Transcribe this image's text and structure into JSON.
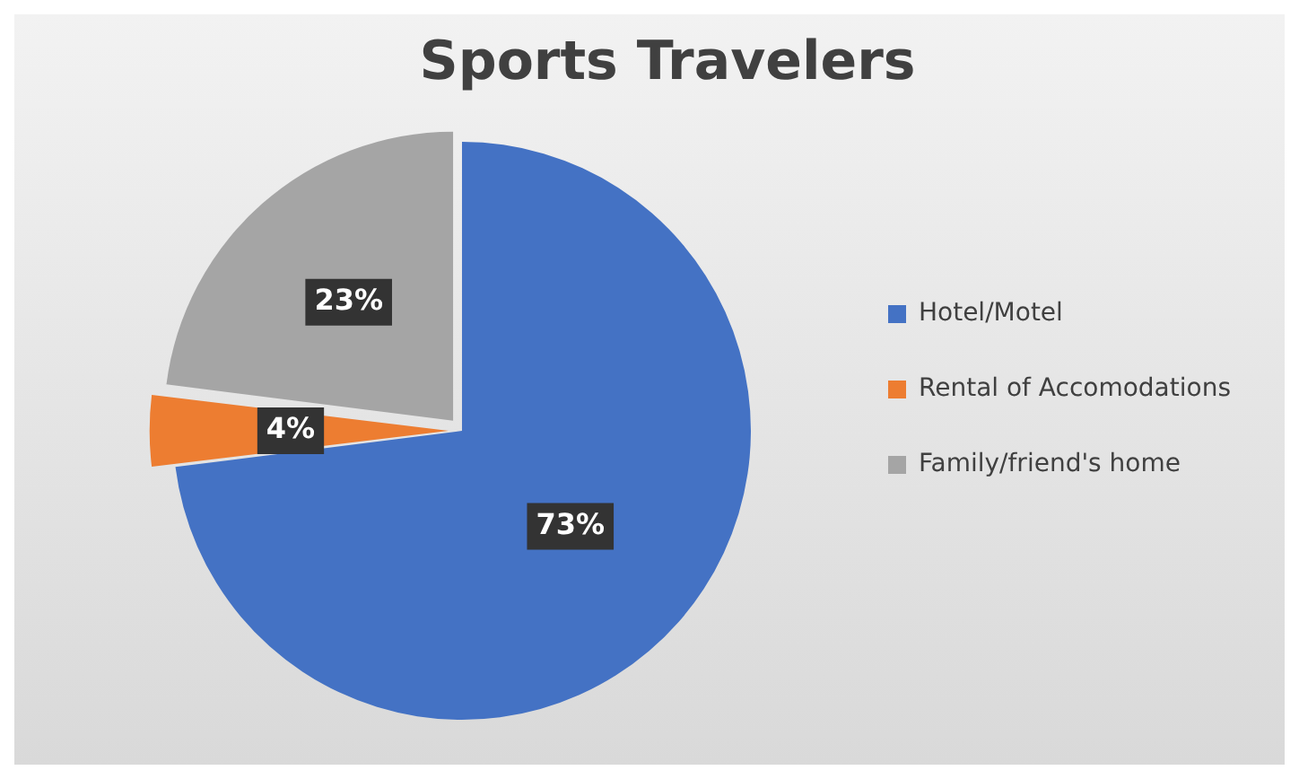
{
  "chart_data": {
    "type": "pie",
    "title": "Sports Travelers",
    "categories": [
      "Hotel/Motel",
      "Rental of Accomodations",
      "Family/friend's home"
    ],
    "values": [
      73,
      4,
      23
    ],
    "colors": [
      "#4472c4",
      "#ed7d31",
      "#a5a5a5"
    ],
    "value_labels": [
      "73%",
      "4%",
      "23%"
    ],
    "legend": "right"
  }
}
